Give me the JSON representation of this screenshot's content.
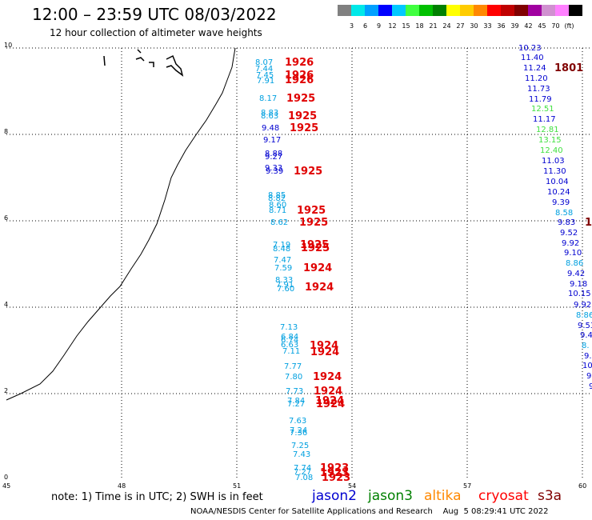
{
  "header": {
    "title": "12:00 – 23:59 UTC 08/03/2022",
    "subtitle": "12 hour collection of altimeter wave heights"
  },
  "color_scale": {
    "colors": [
      "#808080",
      "#00e8e8",
      "#00a0ff",
      "#0000ff",
      "#00c8ff",
      "#40ff40",
      "#00c000",
      "#008000",
      "#ffff00",
      "#ffcc00",
      "#ff8800",
      "#ff0000",
      "#c00000",
      "#800000",
      "#a000a0",
      "#d090d0",
      "#ff80ff",
      "#000000"
    ],
    "labels": [
      "3",
      "6",
      "9",
      "12",
      "15",
      "18",
      "21",
      "24",
      "27",
      "30",
      "33",
      "36",
      "39",
      "42",
      "45",
      "70",
      "(ft)"
    ]
  },
  "axes": {
    "x_ticks": [
      "45",
      "48",
      "51",
      "54",
      "57",
      "60"
    ],
    "y_ticks": [
      "0",
      "2",
      "4",
      "6",
      "8",
      "10"
    ]
  },
  "track_near": {
    "labels": [
      {
        "v": "8.07",
        "c": "#00a0e0"
      },
      {
        "v": "7.44",
        "c": "#00a0e0"
      },
      {
        "v": "7.45",
        "c": "#00a0e0"
      },
      {
        "v": "7.91",
        "c": "#00a0e0"
      },
      {
        "v": "8.17",
        "c": "#00a0e0"
      },
      {
        "v": "8.83",
        "c": "#00a0e0"
      },
      {
        "v": "8.63",
        "c": "#00a0e0"
      },
      {
        "v": "9.48",
        "c": "#0000d0"
      },
      {
        "v": "9.17",
        "c": "#0000d0"
      },
      {
        "v": "8.88",
        "c": "#0000d0"
      },
      {
        "v": "9.27",
        "c": "#0000d0"
      },
      {
        "v": "9.33",
        "c": "#0000d0"
      },
      {
        "v": "9.39",
        "c": "#0000d0"
      },
      {
        "v": "8.85",
        "c": "#00a0e0"
      },
      {
        "v": "8.82",
        "c": "#00a0e0"
      },
      {
        "v": "8.60",
        "c": "#00a0e0"
      },
      {
        "v": "8.71",
        "c": "#00a0e0"
      },
      {
        "v": "8.62",
        "c": "#00a0e0"
      },
      {
        "v": "7.19",
        "c": "#00a0e0"
      },
      {
        "v": "8.48",
        "c": "#00a0e0"
      },
      {
        "v": "7.47",
        "c": "#00a0e0"
      },
      {
        "v": "7.59",
        "c": "#00a0e0"
      },
      {
        "v": "8.33",
        "c": "#00a0e0"
      },
      {
        "v": "7.91",
        "c": "#00a0e0"
      },
      {
        "v": "7.60",
        "c": "#00a0e0"
      },
      {
        "v": "7.13",
        "c": "#00a0e0"
      },
      {
        "v": "6.84",
        "c": "#00a0e0"
      },
      {
        "v": "6.74",
        "c": "#00a0e0"
      },
      {
        "v": "6.63",
        "c": "#00a0e0"
      },
      {
        "v": "7.11",
        "c": "#00a0e0"
      },
      {
        "v": "7.77",
        "c": "#00a0e0"
      },
      {
        "v": "7.80",
        "c": "#00a0e0"
      },
      {
        "v": "7.73",
        "c": "#00a0e0"
      },
      {
        "v": "7.84",
        "c": "#00a0e0"
      },
      {
        "v": "7.27",
        "c": "#00a0e0"
      },
      {
        "v": "7.63",
        "c": "#00a0e0"
      },
      {
        "v": "7.24",
        "c": "#00a0e0"
      },
      {
        "v": "7.36",
        "c": "#00a0e0"
      },
      {
        "v": "7.25",
        "c": "#00a0e0"
      },
      {
        "v": "7.43",
        "c": "#00a0e0"
      },
      {
        "v": "7.74",
        "c": "#00a0e0"
      },
      {
        "v": "7.27",
        "c": "#00a0e0"
      },
      {
        "v": "7.08",
        "c": "#00a0e0"
      }
    ],
    "pass_times": [
      "1926",
      "1926",
      "1926",
      "1925",
      "1925",
      "1925",
      "1925",
      "1925",
      "1925",
      "1925",
      "1925",
      "1924",
      "1924",
      "1924",
      "1924",
      "1924",
      "1924",
      "1924",
      "1924",
      "1923",
      "1923",
      "1923"
    ]
  },
  "track_far": {
    "labels": [
      {
        "v": "10.23",
        "c": "#0000d0"
      },
      {
        "v": "11.40",
        "c": "#0000d0"
      },
      {
        "v": "11.24",
        "c": "#0000d0"
      },
      {
        "v": "11.20",
        "c": "#0000d0"
      },
      {
        "v": "11.73",
        "c": "#0000d0"
      },
      {
        "v": "11.79",
        "c": "#0000d0"
      },
      {
        "v": "12.51",
        "c": "#40e040"
      },
      {
        "v": "11.17",
        "c": "#0000d0"
      },
      {
        "v": "12.81",
        "c": "#40e040"
      },
      {
        "v": "13.15",
        "c": "#40e040"
      },
      {
        "v": "12.40",
        "c": "#40e040"
      },
      {
        "v": "11.03",
        "c": "#0000d0"
      },
      {
        "v": "11.30",
        "c": "#0000d0"
      },
      {
        "v": "10.04",
        "c": "#0000d0"
      },
      {
        "v": "10.24",
        "c": "#0000d0"
      },
      {
        "v": "9.39",
        "c": "#0000d0"
      },
      {
        "v": "8.58",
        "c": "#00a0e0"
      },
      {
        "v": "9.83",
        "c": "#0000d0"
      },
      {
        "v": "9.52",
        "c": "#0000d0"
      },
      {
        "v": "9.92",
        "c": "#0000d0"
      },
      {
        "v": "9.10",
        "c": "#0000d0"
      },
      {
        "v": "8.86",
        "c": "#00a0e0"
      },
      {
        "v": "9.42",
        "c": "#0000d0"
      },
      {
        "v": "9.18",
        "c": "#0000d0"
      },
      {
        "v": "10.15",
        "c": "#0000d0"
      },
      {
        "v": "9.92",
        "c": "#0000d0"
      },
      {
        "v": "8.86",
        "c": "#00a0e0"
      },
      {
        "v": "9.53",
        "c": "#0000d0"
      },
      {
        "v": "9.4",
        "c": "#0000d0"
      },
      {
        "v": "8.",
        "c": "#00a0e0"
      },
      {
        "v": "9.",
        "c": "#0000d0"
      },
      {
        "v": "10",
        "c": "#0000d0"
      },
      {
        "v": "9.",
        "c": "#0000d0"
      },
      {
        "v": "9",
        "c": "#0000d0"
      }
    ],
    "pass_times": [
      "1801",
      "1"
    ]
  },
  "note": "note:  1) Time is in UTC;  2) SWH is in feet",
  "satellites": [
    {
      "name": "jason2",
      "color": "#0000d0"
    },
    {
      "name": "jason3",
      "color": "#008000"
    },
    {
      "name": "altika",
      "color": "#ff8800"
    },
    {
      "name": "cryosat",
      "color": "#ff0000"
    },
    {
      "name": "s3a",
      "color": "#800000"
    }
  ],
  "footer": "NOAA/NESDIS Center for Satellite Applications and Research    Aug  5 08:29:41 UTC 2022"
}
